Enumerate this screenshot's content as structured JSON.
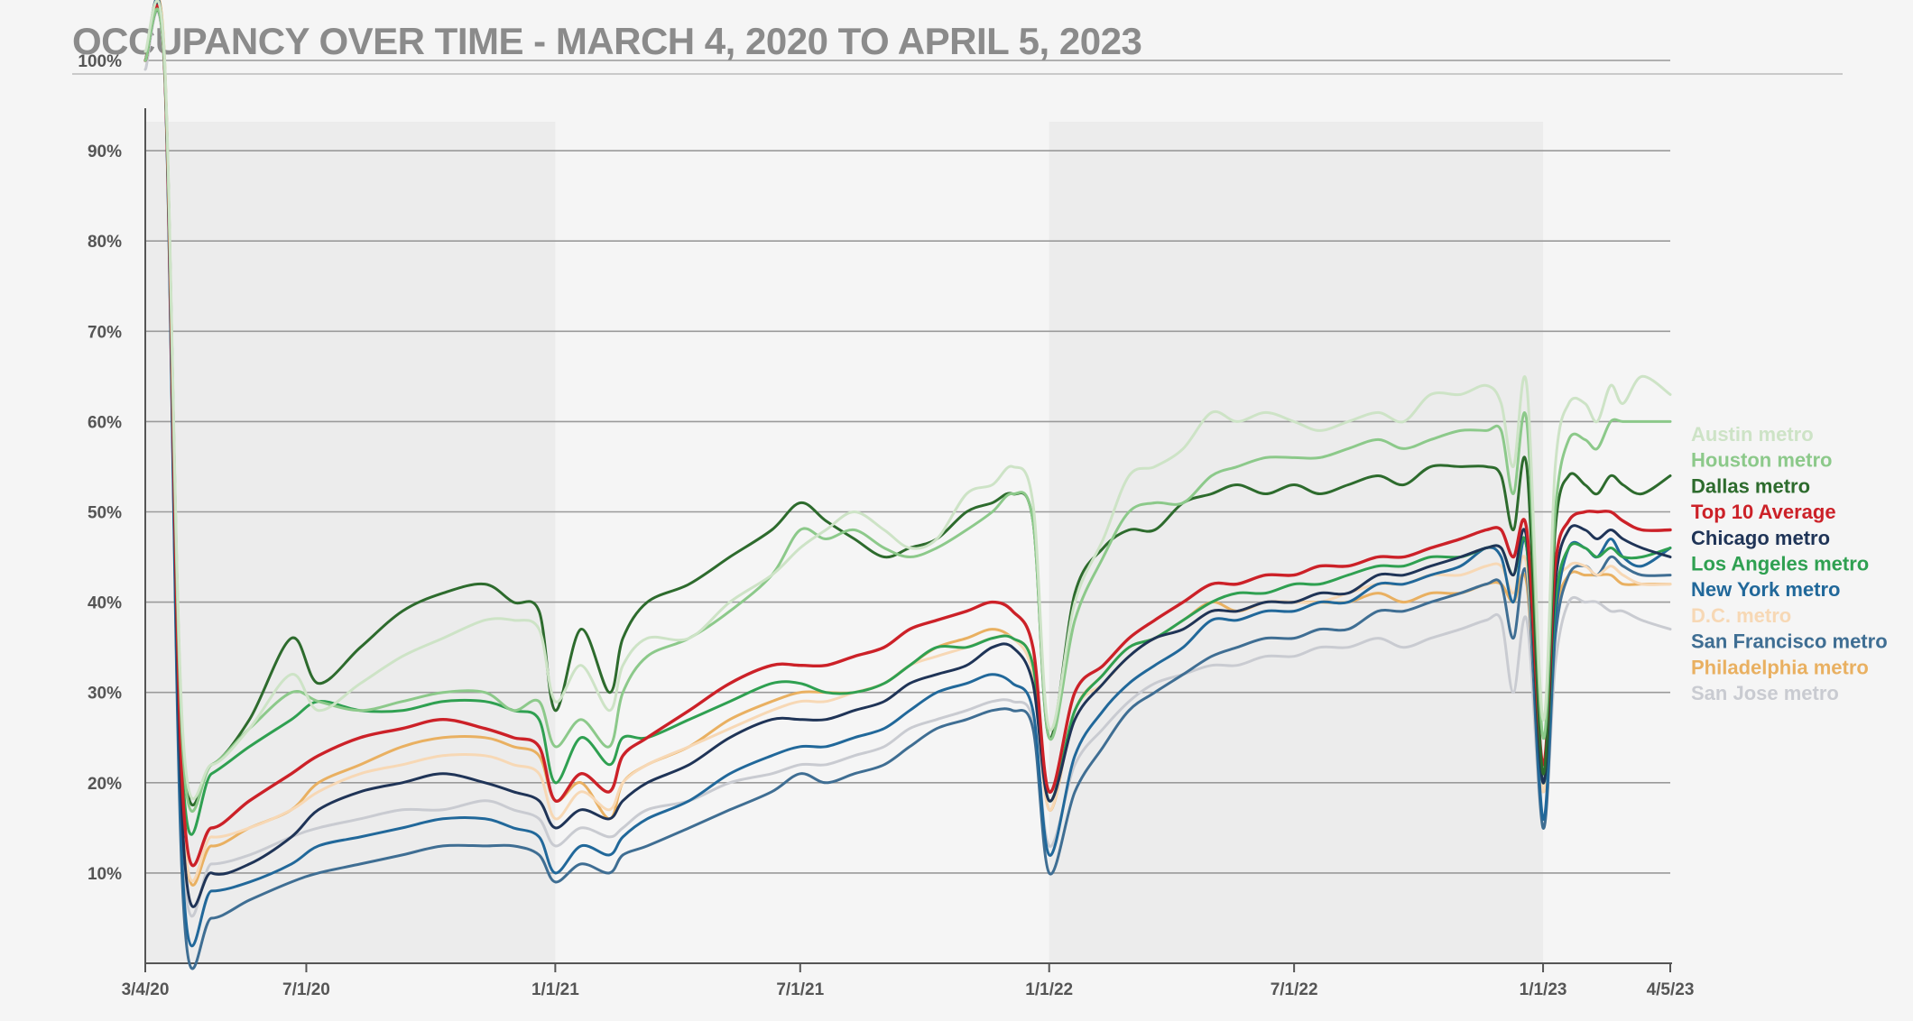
{
  "title": "OCCUPANCY OVER TIME - MARCH 4, 2020 TO APRIL 5, 2023",
  "chart_data": {
    "type": "line",
    "x_type": "date",
    "xlim": [
      "2020-03-04",
      "2023-04-05"
    ],
    "ylim": [
      0,
      100
    ],
    "x_ticks": [
      {
        "date": "2020-03-04",
        "label": "3/4/20"
      },
      {
        "date": "2020-07-01",
        "label": "7/1/20"
      },
      {
        "date": "2021-01-01",
        "label": "1/1/21"
      },
      {
        "date": "2021-07-01",
        "label": "7/1/21"
      },
      {
        "date": "2022-01-01",
        "label": "1/1/22"
      },
      {
        "date": "2022-07-01",
        "label": "7/1/22"
      },
      {
        "date": "2023-01-01",
        "label": "1/1/23"
      },
      {
        "date": "2023-04-05",
        "label": "4/5/23"
      }
    ],
    "y_ticks": [
      {
        "value": 10,
        "label": "10%"
      },
      {
        "value": 20,
        "label": "20%"
      },
      {
        "value": 30,
        "label": "30%"
      },
      {
        "value": 40,
        "label": "40%"
      },
      {
        "value": 50,
        "label": "50%"
      },
      {
        "value": 60,
        "label": "60%"
      },
      {
        "value": 70,
        "label": "70%"
      },
      {
        "value": 80,
        "label": "80%"
      },
      {
        "value": 90,
        "label": "90%"
      },
      {
        "value": 100,
        "label": "100%"
      }
    ],
    "grid": true,
    "shaded_bands": [
      [
        "2020-03-04",
        "2021-01-01"
      ],
      [
        "2022-01-01",
        "2023-01-01"
      ]
    ],
    "legend_position": "right",
    "x": [
      "2020-03-04",
      "2020-03-18",
      "2020-04-01",
      "2020-04-22",
      "2020-05-20",
      "2020-06-20",
      "2020-07-10",
      "2020-08-10",
      "2020-09-10",
      "2020-10-10",
      "2020-11-10",
      "2020-12-01",
      "2020-12-20",
      "2021-01-01",
      "2021-01-20",
      "2021-02-10",
      "2021-02-20",
      "2021-03-10",
      "2021-04-10",
      "2021-05-10",
      "2021-06-10",
      "2021-07-01",
      "2021-07-20",
      "2021-08-10",
      "2021-09-01",
      "2021-09-20",
      "2021-10-10",
      "2021-11-01",
      "2021-11-20",
      "2021-12-05",
      "2021-12-20",
      "2022-01-01",
      "2022-01-20",
      "2022-02-10",
      "2022-03-01",
      "2022-03-20",
      "2022-04-10",
      "2022-05-01",
      "2022-05-20",
      "2022-06-10",
      "2022-07-01",
      "2022-07-20",
      "2022-08-10",
      "2022-09-01",
      "2022-09-20",
      "2022-10-10",
      "2022-11-01",
      "2022-11-20",
      "2022-12-01",
      "2022-12-10",
      "2022-12-20",
      "2023-01-01",
      "2023-01-10",
      "2023-01-20",
      "2023-02-01",
      "2023-02-10",
      "2023-02-20",
      "2023-03-01",
      "2023-03-15",
      "2023-04-05"
    ],
    "series": [
      {
        "name": "Austin metro",
        "color": "#cde3c6",
        "values": [
          101,
          101,
          25,
          22,
          26,
          32,
          28,
          31,
          34,
          36,
          38,
          38,
          37,
          29,
          33,
          28,
          33,
          36,
          36,
          40,
          43,
          46,
          48,
          50,
          48,
          46,
          47,
          52,
          53,
          55,
          51,
          26,
          40,
          47,
          54,
          55,
          57,
          61,
          60,
          61,
          60,
          59,
          60,
          61,
          60,
          63,
          63,
          64,
          62,
          55,
          64,
          27,
          55,
          62,
          62,
          60,
          64,
          62,
          65,
          63
        ]
      },
      {
        "name": "Houston metro",
        "color": "#8cc98a",
        "values": [
          100,
          100,
          23,
          22,
          26,
          30,
          29,
          28,
          29,
          30,
          30,
          28,
          29,
          24,
          27,
          24,
          30,
          34,
          36,
          39,
          43,
          48,
          47,
          48,
          46,
          45,
          46,
          48,
          50,
          52,
          49,
          25,
          38,
          45,
          50,
          51,
          51,
          54,
          55,
          56,
          56,
          56,
          57,
          58,
          57,
          58,
          59,
          59,
          59,
          52,
          60,
          25,
          50,
          58,
          58,
          57,
          60,
          60,
          60,
          60
        ]
      },
      {
        "name": "Dallas metro",
        "color": "#2d6b2d",
        "values": [
          100,
          100,
          24,
          22,
          27,
          36,
          31,
          35,
          39,
          41,
          42,
          40,
          39,
          28,
          37,
          30,
          36,
          40,
          42,
          45,
          48,
          51,
          49,
          47,
          45,
          46,
          47,
          50,
          51,
          52,
          49,
          25,
          41,
          46,
          48,
          48,
          51,
          52,
          53,
          52,
          53,
          52,
          53,
          54,
          53,
          55,
          55,
          55,
          54,
          48,
          55,
          21,
          48,
          54,
          53,
          52,
          54,
          53,
          52,
          54
        ]
      },
      {
        "name": "Top 10 Average",
        "color": "#cc2128",
        "values": [
          100,
          100,
          18,
          15,
          18,
          21,
          23,
          25,
          26,
          27,
          26,
          25,
          24,
          18,
          21,
          19,
          23,
          25,
          28,
          31,
          33,
          33,
          33,
          34,
          35,
          37,
          38,
          39,
          40,
          39,
          35,
          19,
          30,
          33,
          36,
          38,
          40,
          42,
          42,
          43,
          43,
          44,
          44,
          45,
          45,
          46,
          47,
          48,
          48,
          45,
          48,
          22,
          44,
          49,
          50,
          50,
          50,
          49,
          48,
          48
        ]
      },
      {
        "name": "Chicago metro",
        "color": "#1f3457",
        "values": [
          100,
          100,
          14,
          10,
          11,
          14,
          17,
          19,
          20,
          21,
          20,
          19,
          18,
          15,
          17,
          16,
          18,
          20,
          22,
          25,
          27,
          27,
          27,
          28,
          29,
          31,
          32,
          33,
          35,
          35,
          31,
          18,
          27,
          31,
          34,
          36,
          37,
          39,
          39,
          40,
          40,
          41,
          41,
          43,
          43,
          44,
          45,
          46,
          46,
          43,
          47,
          20,
          42,
          48,
          48,
          47,
          48,
          47,
          46,
          45
        ]
      },
      {
        "name": "Los Angeles metro",
        "color": "#2fa051",
        "values": [
          100,
          100,
          20,
          21,
          24,
          27,
          29,
          28,
          28,
          29,
          29,
          28,
          27,
          20,
          25,
          22,
          25,
          25,
          27,
          29,
          31,
          31,
          30,
          30,
          31,
          33,
          35,
          35,
          36,
          36,
          33,
          18,
          28,
          32,
          35,
          36,
          38,
          40,
          41,
          41,
          42,
          42,
          43,
          44,
          44,
          45,
          45,
          46,
          46,
          43,
          46,
          20,
          40,
          46,
          46,
          45,
          46,
          45,
          45,
          46
        ]
      },
      {
        "name": "New York metro",
        "color": "#21689a",
        "values": [
          100,
          100,
          9,
          8,
          9,
          11,
          13,
          14,
          15,
          16,
          16,
          15,
          14,
          10,
          13,
          12,
          14,
          16,
          18,
          21,
          23,
          24,
          24,
          25,
          26,
          28,
          30,
          31,
          32,
          31,
          28,
          12,
          23,
          28,
          31,
          33,
          35,
          38,
          38,
          39,
          39,
          40,
          40,
          42,
          42,
          43,
          44,
          46,
          45,
          40,
          46,
          16,
          38,
          46,
          46,
          45,
          47,
          45,
          44,
          46
        ]
      },
      {
        "name": "D.C. metro",
        "color": "#f7d8b5",
        "values": [
          100,
          100,
          16,
          14,
          15,
          17,
          19,
          21,
          22,
          23,
          23,
          22,
          21,
          16,
          19,
          17,
          20,
          22,
          24,
          26,
          28,
          29,
          29,
          30,
          31,
          33,
          34,
          35,
          36,
          36,
          32,
          17,
          28,
          31,
          34,
          36,
          37,
          39,
          39,
          40,
          40,
          40,
          41,
          42,
          42,
          43,
          43,
          44,
          44,
          41,
          44,
          19,
          40,
          44,
          44,
          43,
          44,
          43,
          42,
          42
        ]
      },
      {
        "name": "San Francisco metro",
        "color": "#3f6e93",
        "values": [
          100,
          100,
          7,
          5,
          7,
          9,
          10,
          11,
          12,
          13,
          13,
          13,
          12,
          9,
          11,
          10,
          12,
          13,
          15,
          17,
          19,
          21,
          20,
          21,
          22,
          24,
          26,
          27,
          28,
          28,
          26,
          10,
          19,
          24,
          28,
          30,
          32,
          34,
          35,
          36,
          36,
          37,
          37,
          39,
          39,
          40,
          41,
          42,
          42,
          36,
          43,
          15,
          36,
          43,
          44,
          43,
          45,
          44,
          43,
          43
        ]
      },
      {
        "name": "Philadelphia metro",
        "color": "#e9b061",
        "values": [
          100,
          101,
          16,
          13,
          15,
          17,
          20,
          22,
          24,
          25,
          25,
          24,
          23,
          18,
          20,
          16,
          20,
          22,
          24,
          27,
          29,
          30,
          30,
          30,
          31,
          33,
          35,
          36,
          37,
          36,
          33,
          17,
          28,
          32,
          35,
          36,
          38,
          40,
          39,
          40,
          40,
          40,
          40,
          41,
          40,
          41,
          41,
          42,
          42,
          40,
          42,
          19,
          38,
          43,
          43,
          43,
          43,
          42,
          42,
          42
        ]
      },
      {
        "name": "San Jose metro",
        "color": "#c9cbd1",
        "values": [
          99,
          99,
          12,
          11,
          12,
          14,
          15,
          16,
          17,
          17,
          18,
          17,
          16,
          13,
          15,
          14,
          15,
          17,
          18,
          20,
          21,
          22,
          22,
          23,
          24,
          26,
          27,
          28,
          29,
          29,
          27,
          13,
          22,
          26,
          29,
          31,
          32,
          33,
          33,
          34,
          34,
          35,
          35,
          36,
          35,
          36,
          37,
          38,
          38,
          30,
          38,
          15,
          33,
          40,
          40,
          40,
          39,
          39,
          38,
          37
        ]
      }
    ]
  }
}
